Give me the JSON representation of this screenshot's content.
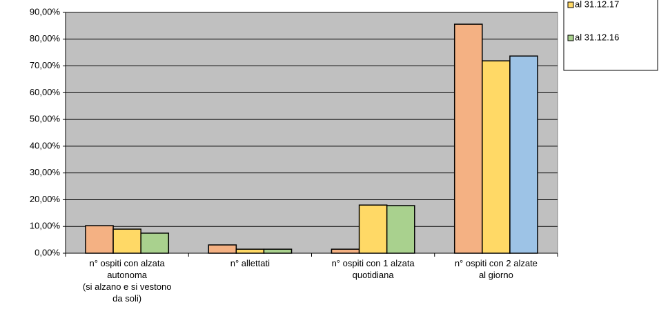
{
  "chart_data": {
    "type": "bar",
    "categories": [
      "n° ospiti con alzata\nautonoma\n(si alzano e si vestono\nda soli)",
      "n° allettati",
      "n° ospiti con 1 alzata\nquotidiana",
      "n° ospiti con 2 alzate\nal giorno"
    ],
    "series": [
      {
        "color": "#f4b183",
        "values": [
          10.3,
          3.1,
          1.5,
          85.6
        ]
      },
      {
        "name": "al 31.12.17",
        "color": "#ffd966",
        "values": [
          9.0,
          1.5,
          18.0,
          71.9
        ]
      },
      {
        "name": "al 31.12.16",
        "color": "#a9d18e",
        "point_colors": [
          "#a9d18e",
          "#a9d18e",
          "#a9d18e",
          "#9dc3e6"
        ],
        "values": [
          7.5,
          1.5,
          17.8,
          73.7
        ]
      }
    ],
    "ylim": [
      0,
      90
    ],
    "yticks": [
      {
        "value": 0,
        "label": "0,00%"
      },
      {
        "value": 10,
        "label": "10,00%"
      },
      {
        "value": 20,
        "label": "20,00%"
      },
      {
        "value": 30,
        "label": "30,00%"
      },
      {
        "value": 40,
        "label": "40,00%"
      },
      {
        "value": 50,
        "label": "50,00%"
      },
      {
        "value": 60,
        "label": "60,00%"
      },
      {
        "value": 70,
        "label": "70,00%"
      },
      {
        "value": 80,
        "label": "80,00%"
      },
      {
        "value": 90,
        "label": "90,00%"
      }
    ],
    "grid": true,
    "legend": "top-right",
    "plot_background": "#c0c0c0"
  }
}
